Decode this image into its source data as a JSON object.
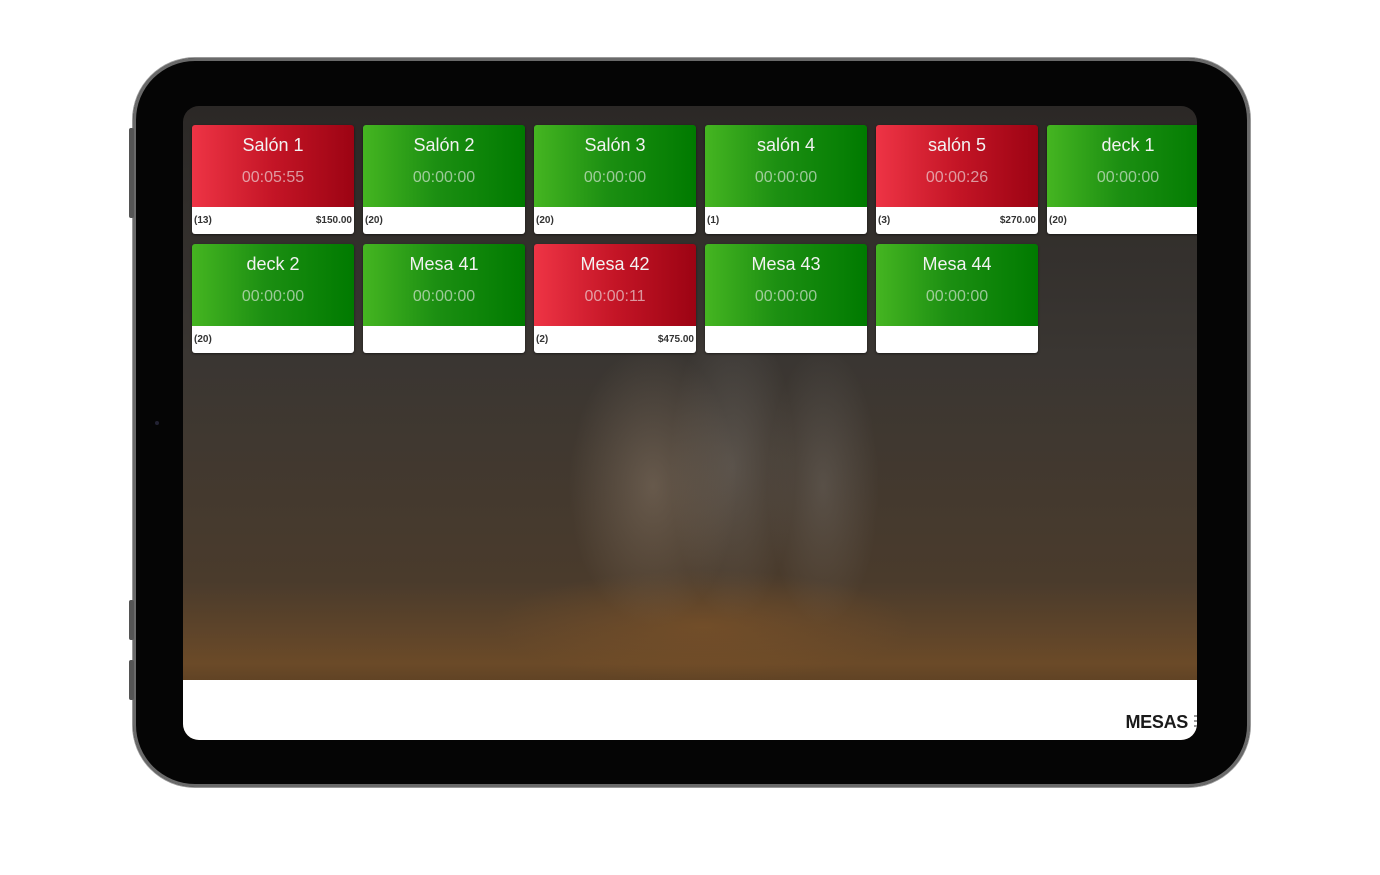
{
  "tables": [
    {
      "name": "Salón 1",
      "time": "00:05:55",
      "guests": "(13)",
      "amount": "$150.00",
      "status": "occupied"
    },
    {
      "name": "Salón 2",
      "time": "00:00:00",
      "guests": "(20)",
      "amount": "",
      "status": "free"
    },
    {
      "name": "Salón 3",
      "time": "00:00:00",
      "guests": "(20)",
      "amount": "",
      "status": "free"
    },
    {
      "name": "salón 4",
      "time": "00:00:00",
      "guests": "(1)",
      "amount": "",
      "status": "free"
    },
    {
      "name": "salón 5",
      "time": "00:00:26",
      "guests": "(3)",
      "amount": "$270.00",
      "status": "occupied"
    },
    {
      "name": "deck 1",
      "time": "00:00:00",
      "guests": "(20)",
      "amount": "",
      "status": "free"
    },
    {
      "name": "deck 2",
      "time": "00:00:00",
      "guests": "(20)",
      "amount": "",
      "status": "free"
    },
    {
      "name": "Mesa 41",
      "time": "00:00:00",
      "guests": "",
      "amount": "",
      "status": "free"
    },
    {
      "name": "Mesa 42",
      "time": "00:00:11",
      "guests": "(2)",
      "amount": "$475.00",
      "status": "occupied"
    },
    {
      "name": "Mesa 43",
      "time": "00:00:00",
      "guests": "",
      "amount": "",
      "status": "free"
    },
    {
      "name": "Mesa 44",
      "time": "00:00:00",
      "guests": "",
      "amount": "",
      "status": "free"
    }
  ],
  "colors": {
    "free": "#1c8f12",
    "occupied": "#c41526"
  },
  "bottom_bar": {
    "section_label": "MESAS",
    "menu_icon": "more-vert-icon"
  }
}
